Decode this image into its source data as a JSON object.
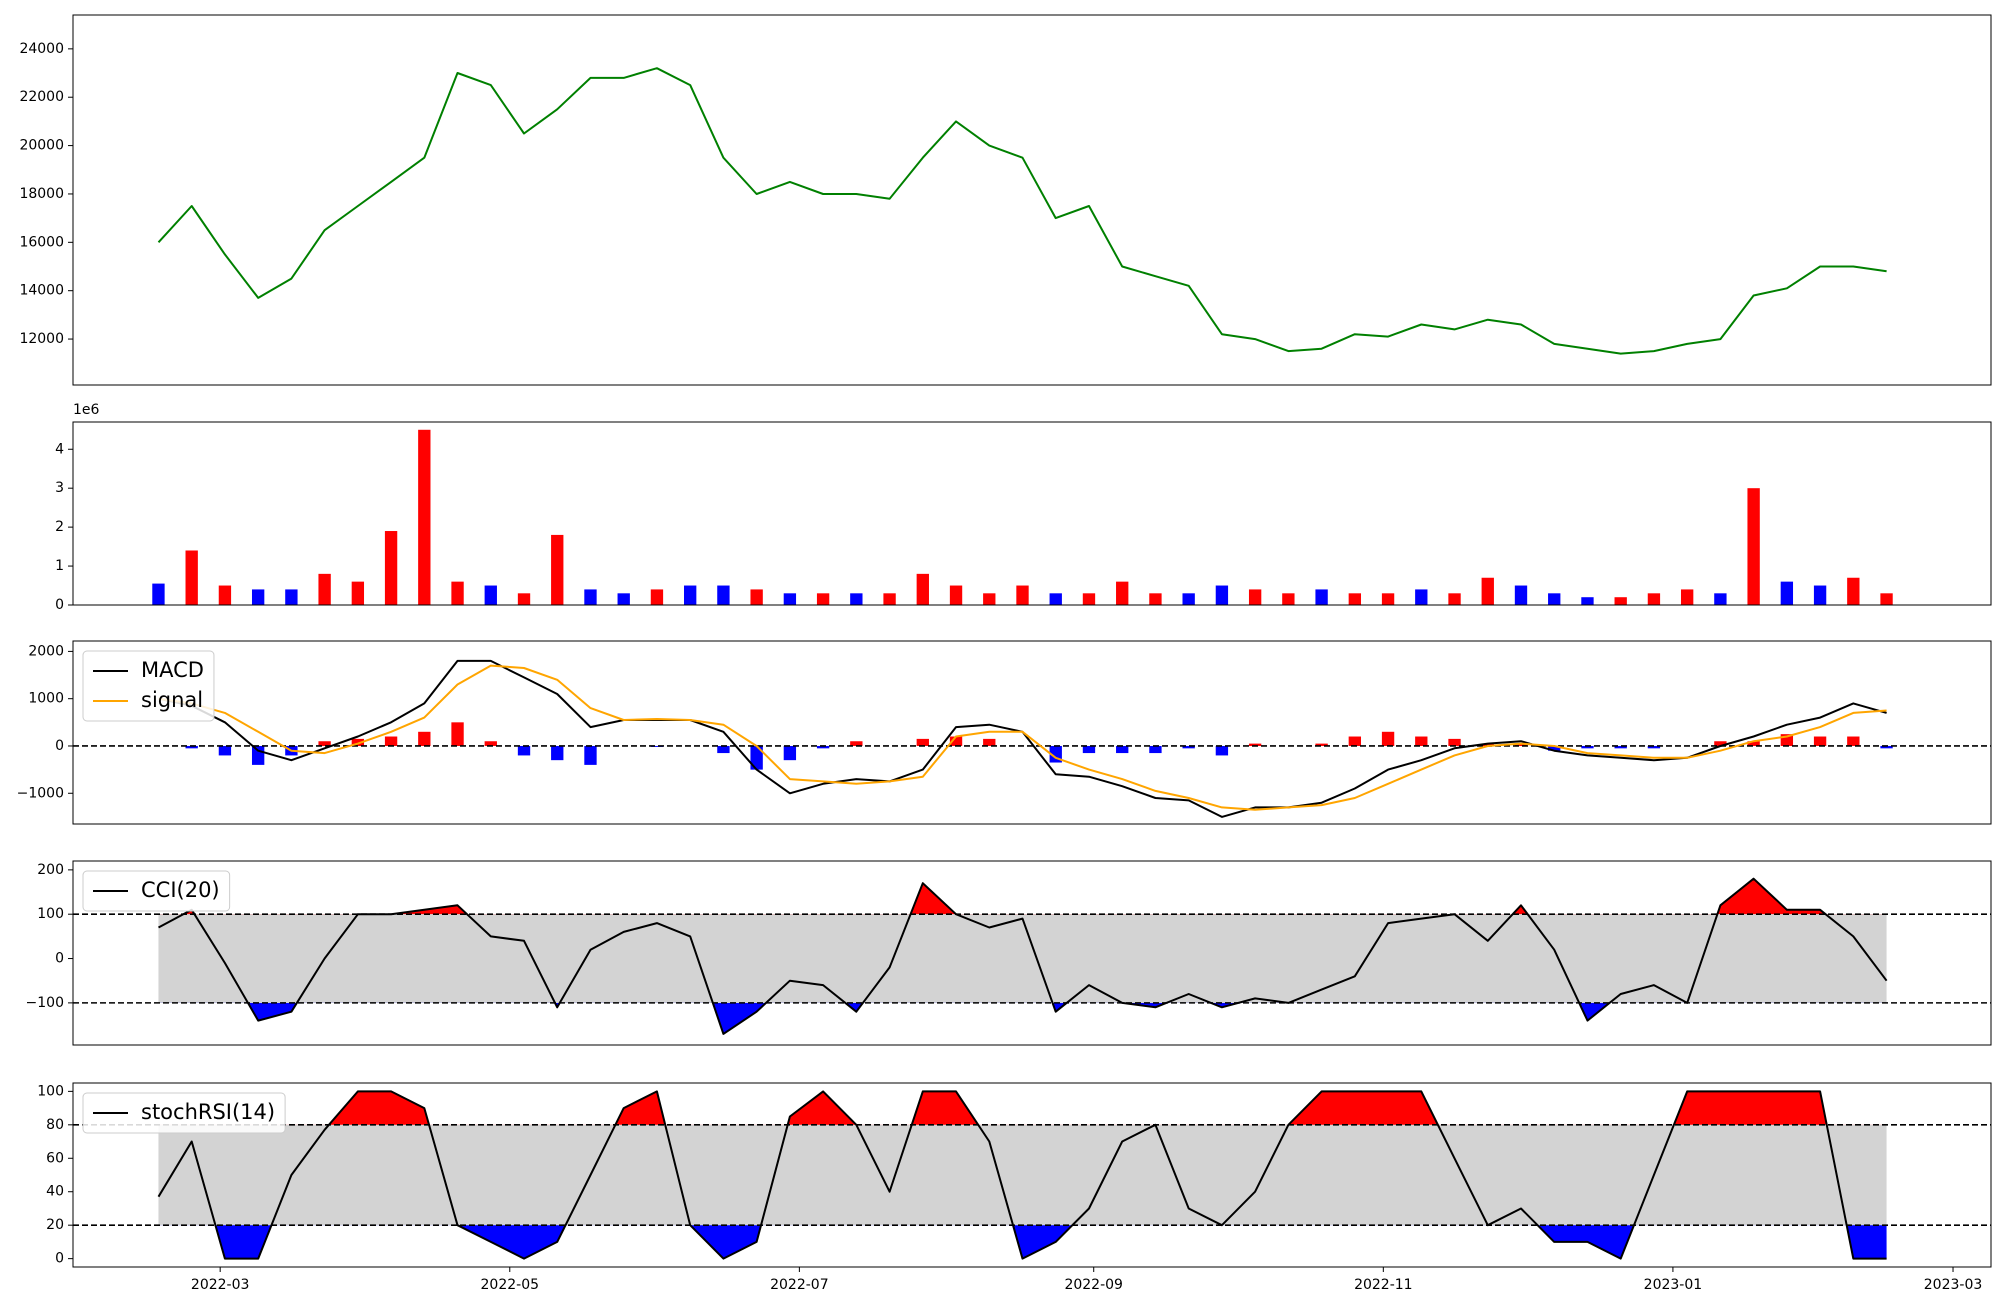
{
  "chart_data": [
    {
      "type": "line",
      "x": [
        19039,
        19046,
        19053,
        19060,
        19067,
        19074,
        19081,
        19088,
        19095,
        19102,
        19109,
        19116,
        19123,
        19130,
        19137,
        19144,
        19151,
        19158,
        19165,
        19172,
        19179,
        19186,
        19193,
        19200,
        19207,
        19214,
        19221,
        19228,
        19235,
        19242,
        19249,
        19256,
        19263,
        19270,
        19277,
        19284,
        19291,
        19298,
        19305,
        19312,
        19319,
        19326,
        19333,
        19340,
        19347,
        19354,
        19361,
        19368,
        19375,
        19382,
        19389,
        19396,
        19403
      ],
      "series": [
        {
          "color": "#008000",
          "values": [
            16000,
            17500,
            15500,
            13700,
            14500,
            16500,
            17500,
            18500,
            19500,
            23000,
            22500,
            20500,
            21500,
            22800,
            22800,
            23200,
            22500,
            19500,
            18000,
            18500,
            18000,
            18000,
            17800,
            19500,
            21000,
            20000,
            19500,
            17000,
            17500,
            15000,
            14600,
            14200,
            12200,
            12000,
            11500,
            11600,
            12200,
            12100,
            12600,
            12400,
            12800,
            12600,
            11800,
            11600,
            11400,
            11500,
            11800,
            12000,
            13800,
            14100,
            15000,
            15000,
            14800
          ]
        }
      ],
      "xlim": [
        19021,
        19425
      ],
      "ylim": [
        10100,
        25400
      ],
      "yticks": [
        12000,
        14000,
        16000,
        18000,
        20000,
        22000,
        24000
      ]
    },
    {
      "type": "bar",
      "offset_label": "1e6",
      "x": [
        19039,
        19046,
        19053,
        19060,
        19067,
        19074,
        19081,
        19088,
        19095,
        19102,
        19109,
        19116,
        19123,
        19130,
        19137,
        19144,
        19151,
        19158,
        19165,
        19172,
        19179,
        19186,
        19193,
        19200,
        19207,
        19214,
        19221,
        19228,
        19235,
        19242,
        19249,
        19256,
        19263,
        19270,
        19277,
        19284,
        19291,
        19298,
        19305,
        19312,
        19319,
        19326,
        19333,
        19340,
        19347,
        19354,
        19361,
        19368,
        19375,
        19382,
        19389,
        19396,
        19403
      ],
      "values": [
        0.55,
        1.4,
        0.5,
        0.4,
        0.4,
        0.8,
        0.6,
        1.9,
        4.5,
        0.6,
        0.5,
        0.3,
        1.8,
        0.4,
        0.3,
        0.4,
        0.5,
        0.5,
        0.4,
        0.3,
        0.3,
        0.3,
        0.3,
        0.8,
        0.5,
        0.3,
        0.5,
        0.3,
        0.3,
        0.6,
        0.3,
        0.3,
        0.5,
        0.4,
        0.3,
        0.4,
        0.3,
        0.3,
        0.4,
        0.3,
        0.7,
        0.5,
        0.3,
        0.2,
        0.2,
        0.3,
        0.4,
        0.3,
        3.0,
        0.6,
        0.5,
        0.7,
        0.3
      ],
      "colors": [
        "#0000ff",
        "#ff0000",
        "#ff0000",
        "#0000ff",
        "#0000ff",
        "#ff0000",
        "#ff0000",
        "#ff0000",
        "#ff0000",
        "#ff0000",
        "#0000ff",
        "#ff0000",
        "#ff0000",
        "#0000ff",
        "#0000ff",
        "#ff0000",
        "#0000ff",
        "#0000ff",
        "#ff0000",
        "#0000ff",
        "#ff0000",
        "#0000ff",
        "#ff0000",
        "#ff0000",
        "#ff0000",
        "#ff0000",
        "#ff0000",
        "#0000ff",
        "#ff0000",
        "#ff0000",
        "#ff0000",
        "#0000ff",
        "#0000ff",
        "#ff0000",
        "#ff0000",
        "#0000ff",
        "#ff0000",
        "#ff0000",
        "#0000ff",
        "#ff0000",
        "#ff0000",
        "#0000ff",
        "#0000ff",
        "#0000ff",
        "#ff0000",
        "#ff0000",
        "#ff0000",
        "#0000ff",
        "#ff0000",
        "#0000ff",
        "#0000ff",
        "#ff0000",
        "#ff0000"
      ],
      "xlim": [
        19021,
        19425
      ],
      "ylim": [
        0,
        4.7
      ],
      "yticks": [
        0,
        1,
        2,
        3,
        4
      ]
    },
    {
      "type": "macd",
      "x": [
        19039,
        19046,
        19053,
        19060,
        19067,
        19074,
        19081,
        19088,
        19095,
        19102,
        19109,
        19116,
        19123,
        19130,
        19137,
        19144,
        19151,
        19158,
        19165,
        19172,
        19179,
        19186,
        19193,
        19200,
        19207,
        19214,
        19221,
        19228,
        19235,
        19242,
        19249,
        19256,
        19263,
        19270,
        19277,
        19284,
        19291,
        19298,
        19305,
        19312,
        19319,
        19326,
        19333,
        19340,
        19347,
        19354,
        19361,
        19368,
        19375,
        19382,
        19389,
        19396,
        19403
      ],
      "series": [
        {
          "name": "MACD",
          "color": "#000000",
          "values": [
            1000,
            850,
            500,
            -100,
            -300,
            -50,
            200,
            500,
            900,
            1800,
            1800,
            1450,
            1100,
            400,
            550,
            550,
            550,
            300,
            -500,
            -1000,
            -800,
            -700,
            -750,
            -500,
            400,
            450,
            300,
            -600,
            -650,
            -850,
            -1100,
            -1150,
            -1500,
            -1300,
            -1300,
            -1200,
            -900,
            -500,
            -300,
            -50,
            50,
            100,
            -100,
            -200,
            -250,
            -300,
            -250,
            0,
            200,
            450,
            600,
            900,
            700
          ]
        },
        {
          "name": "signal",
          "color": "#ffa500",
          "values": [
            1000,
            900,
            700,
            300,
            -100,
            -150,
            50,
            300,
            600,
            1300,
            1700,
            1650,
            1400,
            800,
            550,
            570,
            550,
            450,
            0,
            -700,
            -750,
            -800,
            -750,
            -650,
            200,
            300,
            300,
            -250,
            -500,
            -700,
            -950,
            -1100,
            -1300,
            -1350,
            -1300,
            -1250,
            -1100,
            -800,
            -500,
            -200,
            0,
            50,
            0,
            -150,
            -200,
            -250,
            -250,
            -100,
            100,
            200,
            400,
            700,
            750
          ]
        }
      ],
      "histogram": [
        0,
        -50,
        -200,
        -400,
        -200,
        100,
        150,
        200,
        300,
        500,
        100,
        -200,
        -300,
        -400,
        0,
        -20,
        0,
        -150,
        -500,
        -300,
        -50,
        100,
        0,
        150,
        200,
        150,
        0,
        -350,
        -150,
        -150,
        -150,
        -50,
        -200,
        50,
        0,
        50,
        200,
        300,
        200,
        150,
        50,
        50,
        -100,
        -50,
        -50,
        -50,
        0,
        100,
        100,
        250,
        200,
        200,
        -50
      ],
      "positive_color": "#ff0000",
      "negative_color": "#0000ff",
      "hlines": [
        0
      ],
      "xlim": [
        19021,
        19425
      ],
      "ylim": [
        -1650,
        2220
      ],
      "yticks": [
        {
          "value": -1000,
          "label": "−1000"
        },
        0,
        1000,
        2000
      ],
      "legend": "upper left"
    },
    {
      "type": "oscillator",
      "x": [
        19039,
        19046,
        19053,
        19060,
        19067,
        19074,
        19081,
        19088,
        19095,
        19102,
        19109,
        19116,
        19123,
        19130,
        19137,
        19144,
        19151,
        19158,
        19165,
        19172,
        19179,
        19186,
        19193,
        19200,
        19207,
        19214,
        19221,
        19228,
        19235,
        19242,
        19249,
        19256,
        19263,
        19270,
        19277,
        19284,
        19291,
        19298,
        19305,
        19312,
        19319,
        19326,
        19333,
        19340,
        19347,
        19354,
        19361,
        19368,
        19375,
        19382,
        19389,
        19396,
        19403
      ],
      "series": [
        {
          "name": "CCI(20)",
          "color": "#000000",
          "values": [
            70,
            110,
            -10,
            -140,
            -120,
            0,
            100,
            100,
            110,
            120,
            50,
            40,
            -110,
            20,
            60,
            80,
            50,
            -170,
            -120,
            -50,
            -60,
            -120,
            -20,
            170,
            100,
            70,
            90,
            -120,
            -60,
            -100,
            -110,
            -80,
            -110,
            -90,
            -100,
            -70,
            -40,
            80,
            90,
            100,
            40,
            120,
            20,
            -140,
            -80,
            -60,
            -100,
            120,
            180,
            110,
            110,
            50,
            -50
          ]
        }
      ],
      "hlines": [
        100,
        -100
      ],
      "upper_color": "#ff0000",
      "lower_color": "#0000ff",
      "band_color": "#d3d3d3",
      "xlim": [
        19021,
        19425
      ],
      "ylim": [
        -195,
        220
      ],
      "yticks": [
        {
          "value": -100,
          "label": "−100"
        },
        0,
        100,
        200
      ],
      "legend": "upper left"
    },
    {
      "type": "oscillator",
      "x": [
        19039,
        19046,
        19053,
        19060,
        19067,
        19074,
        19081,
        19088,
        19095,
        19102,
        19109,
        19116,
        19123,
        19130,
        19137,
        19144,
        19151,
        19158,
        19165,
        19172,
        19179,
        19186,
        19193,
        19200,
        19207,
        19214,
        19221,
        19228,
        19235,
        19242,
        19249,
        19256,
        19263,
        19270,
        19277,
        19284,
        19291,
        19298,
        19305,
        19312,
        19319,
        19326,
        19333,
        19340,
        19347,
        19354,
        19361,
        19368,
        19375,
        19382,
        19389,
        19396,
        19403
      ],
      "series": [
        {
          "name": "stochRSI(14)",
          "color": "#000000",
          "values": [
            37,
            70,
            0,
            0,
            50,
            77,
            100,
            100,
            90,
            20,
            10,
            0,
            10,
            50,
            90,
            100,
            20,
            0,
            10,
            85,
            100,
            80,
            40,
            100,
            100,
            70,
            0,
            10,
            30,
            70,
            80,
            30,
            20,
            40,
            80,
            100,
            100,
            100,
            100,
            60,
            20,
            30,
            10,
            10,
            0,
            50,
            100,
            100,
            100,
            100,
            100,
            0,
            0
          ]
        }
      ],
      "hlines": [
        80,
        20
      ],
      "upper_color": "#ff0000",
      "lower_color": "#0000ff",
      "band_color": "#d3d3d3",
      "xlim": [
        19021,
        19425
      ],
      "ylim": [
        -5,
        105
      ],
      "yticks": [
        0,
        20,
        40,
        60,
        80,
        100
      ],
      "legend": "upper left",
      "xticks": [
        {
          "value": 19052,
          "label": "2022-03"
        },
        {
          "value": 19113,
          "label": "2022-05"
        },
        {
          "value": 19174,
          "label": "2022-07"
        },
        {
          "value": 19236,
          "label": "2022-09"
        },
        {
          "value": 19297,
          "label": "2022-11"
        },
        {
          "value": 19358,
          "label": "2023-01"
        },
        {
          "value": 19417,
          "label": "2023-03"
        }
      ]
    }
  ]
}
